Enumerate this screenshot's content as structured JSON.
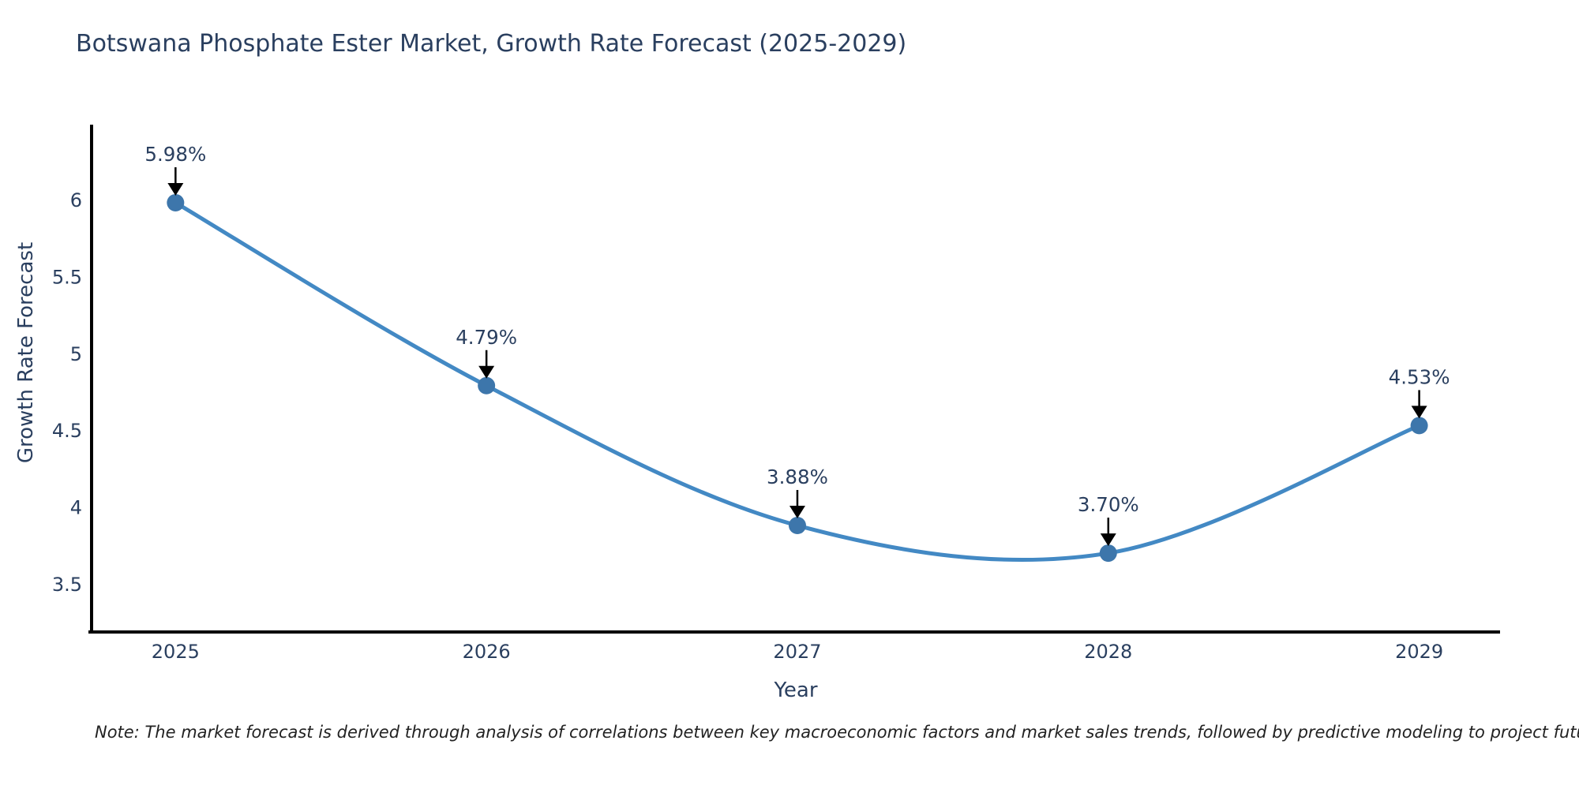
{
  "chart_data": {
    "type": "line",
    "title": "Botswana Phosphate Ester Market, Growth Rate Forecast (2025-2029)",
    "xlabel": "Year",
    "ylabel": "Growth Rate Forecast",
    "x": [
      2025,
      2026,
      2027,
      2028,
      2029
    ],
    "series": [
      {
        "name": "Growth Rate Forecast",
        "values": [
          5.98,
          4.79,
          3.88,
          3.7,
          4.53
        ]
      }
    ],
    "point_labels": [
      "5.98%",
      "4.79%",
      "3.88%",
      "3.70%",
      "4.53%"
    ],
    "xtick_labels": [
      "2025",
      "2026",
      "2027",
      "2028",
      "2029"
    ],
    "yticks": [
      3.5,
      4,
      4.5,
      5,
      5.5,
      6
    ],
    "ytick_labels": [
      "3.5",
      "4",
      "4.5",
      "5",
      "5.5",
      "6"
    ],
    "xlim": [
      2024.73,
      2029.26
    ],
    "ylim": [
      3.187,
      6.488
    ],
    "line_shape": "spline",
    "grid": false,
    "legend_position": "none",
    "note": "Note: The market forecast is derived through analysis of correlations between key macroeconomic factors and market sales trends, followed by predictive modeling to project future sales",
    "colors": {
      "line": "#4389c4",
      "marker": "#3d76ab",
      "axis_line": "#000000",
      "text": "#2a3f5f",
      "annotation_arrow": "#000000",
      "note_text": "#222222",
      "background": "#ffffff"
    }
  }
}
